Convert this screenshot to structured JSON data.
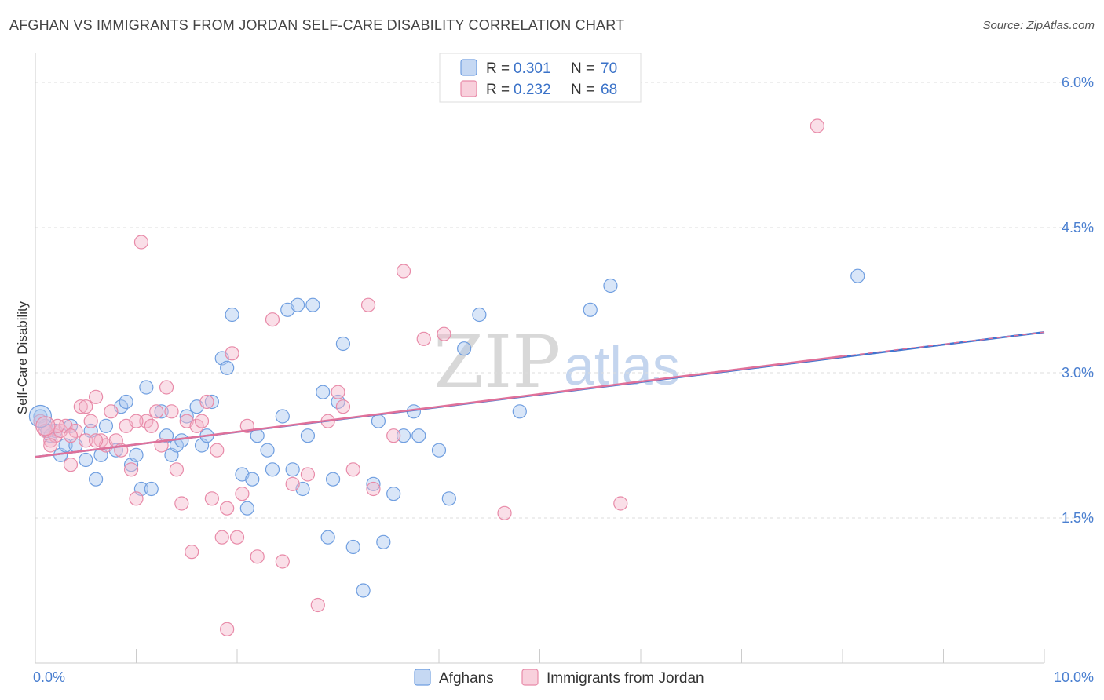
{
  "title": "AFGHAN VS IMMIGRANTS FROM JORDAN SELF-CARE DISABILITY CORRELATION CHART",
  "source": "Source: ZipAtlas.com",
  "watermark": {
    "zip": "ZIP",
    "atlas": "atlas"
  },
  "chart_data": {
    "type": "scatter",
    "ylabel": "Self-Care Disability",
    "xlabel": "",
    "xlim": [
      0,
      10
    ],
    "ylim": [
      0,
      6.3
    ],
    "x_tick_labels": [
      "0.0%",
      "10.0%"
    ],
    "y_ticks": [
      1.5,
      3.0,
      4.5,
      6.0
    ],
    "y_tick_labels": [
      "1.5%",
      "3.0%",
      "4.5%",
      "6.0%"
    ],
    "legend": [
      {
        "name": "Afghans",
        "r_label": "R =",
        "r": "0.301",
        "n_label": "N =",
        "n": "70",
        "color": "#6f9ee0",
        "fill": "#c5d8f3"
      },
      {
        "name": "Immigrants from Jordan",
        "r_label": "R =",
        "r": "0.232",
        "n_label": "N =",
        "n": "68",
        "color": "#e88aa8",
        "fill": "#f8d0dc"
      }
    ],
    "series": [
      {
        "name": "Afghans",
        "color": "#6f9ee0",
        "trend": {
          "x0": 0.0,
          "y0": 2.13,
          "x1": 10.0,
          "y1": 3.42
        },
        "points": [
          [
            0.05,
            2.55
          ],
          [
            0.1,
            2.45
          ],
          [
            0.15,
            2.35
          ],
          [
            0.2,
            2.4
          ],
          [
            0.25,
            2.15
          ],
          [
            0.3,
            2.25
          ],
          [
            0.35,
            2.45
          ],
          [
            0.4,
            2.25
          ],
          [
            0.5,
            2.1
          ],
          [
            0.55,
            2.4
          ],
          [
            0.6,
            1.9
          ],
          [
            0.65,
            2.15
          ],
          [
            0.7,
            2.45
          ],
          [
            0.8,
            2.2
          ],
          [
            0.85,
            2.65
          ],
          [
            0.9,
            2.7
          ],
          [
            0.95,
            2.05
          ],
          [
            1.0,
            2.15
          ],
          [
            1.05,
            1.8
          ],
          [
            1.1,
            2.85
          ],
          [
            1.15,
            1.8
          ],
          [
            1.25,
            2.6
          ],
          [
            1.3,
            2.35
          ],
          [
            1.35,
            2.15
          ],
          [
            1.4,
            2.25
          ],
          [
            1.45,
            2.3
          ],
          [
            1.5,
            2.55
          ],
          [
            1.6,
            2.65
          ],
          [
            1.65,
            2.25
          ],
          [
            1.7,
            2.35
          ],
          [
            1.75,
            2.7
          ],
          [
            1.85,
            3.15
          ],
          [
            1.9,
            3.05
          ],
          [
            1.95,
            3.6
          ],
          [
            2.05,
            1.95
          ],
          [
            2.1,
            1.6
          ],
          [
            2.15,
            1.9
          ],
          [
            2.2,
            2.35
          ],
          [
            2.3,
            2.2
          ],
          [
            2.35,
            2.0
          ],
          [
            2.45,
            2.55
          ],
          [
            2.5,
            3.65
          ],
          [
            2.55,
            2.0
          ],
          [
            2.6,
            3.7
          ],
          [
            2.65,
            1.8
          ],
          [
            2.7,
            2.35
          ],
          [
            2.75,
            3.7
          ],
          [
            2.85,
            2.8
          ],
          [
            2.9,
            1.3
          ],
          [
            2.95,
            1.9
          ],
          [
            3.0,
            2.7
          ],
          [
            3.05,
            3.3
          ],
          [
            3.15,
            1.2
          ],
          [
            3.25,
            0.75
          ],
          [
            3.35,
            1.85
          ],
          [
            3.4,
            2.5
          ],
          [
            3.45,
            1.25
          ],
          [
            3.55,
            1.75
          ],
          [
            3.65,
            2.35
          ],
          [
            3.75,
            2.6
          ],
          [
            3.8,
            2.35
          ],
          [
            4.0,
            2.2
          ],
          [
            4.1,
            1.7
          ],
          [
            4.25,
            3.25
          ],
          [
            4.4,
            3.6
          ],
          [
            4.8,
            2.6
          ],
          [
            5.5,
            3.65
          ],
          [
            5.7,
            3.9
          ],
          [
            8.15,
            4.0
          ],
          [
            0.12,
            2.4
          ]
        ]
      },
      {
        "name": "Immigrants from Jordan",
        "color": "#e88aa8",
        "trend": {
          "x0": 0.0,
          "y0": 2.13,
          "x1": 8.0,
          "y1": 3.17
        },
        "points": [
          [
            0.05,
            2.5
          ],
          [
            0.1,
            2.4
          ],
          [
            0.15,
            2.3
          ],
          [
            0.2,
            2.35
          ],
          [
            0.25,
            2.4
          ],
          [
            0.3,
            2.45
          ],
          [
            0.35,
            2.05
          ],
          [
            0.4,
            2.4
          ],
          [
            0.45,
            2.65
          ],
          [
            0.5,
            2.65
          ],
          [
            0.55,
            2.5
          ],
          [
            0.6,
            2.75
          ],
          [
            0.65,
            2.3
          ],
          [
            0.7,
            2.25
          ],
          [
            0.75,
            2.6
          ],
          [
            0.8,
            2.3
          ],
          [
            0.85,
            2.2
          ],
          [
            0.9,
            2.45
          ],
          [
            0.95,
            2.0
          ],
          [
            1.0,
            1.7
          ],
          [
            1.05,
            4.35
          ],
          [
            1.1,
            2.5
          ],
          [
            1.15,
            2.45
          ],
          [
            1.2,
            2.6
          ],
          [
            1.25,
            2.25
          ],
          [
            1.3,
            2.85
          ],
          [
            1.35,
            2.6
          ],
          [
            1.4,
            2.0
          ],
          [
            1.45,
            1.65
          ],
          [
            1.5,
            2.5
          ],
          [
            1.55,
            1.15
          ],
          [
            1.6,
            2.45
          ],
          [
            1.65,
            2.5
          ],
          [
            1.7,
            2.7
          ],
          [
            1.75,
            1.7
          ],
          [
            1.8,
            2.2
          ],
          [
            1.85,
            1.3
          ],
          [
            1.9,
            1.6
          ],
          [
            1.95,
            3.2
          ],
          [
            2.0,
            1.3
          ],
          [
            2.05,
            1.75
          ],
          [
            2.1,
            2.45
          ],
          [
            2.2,
            1.1
          ],
          [
            2.35,
            3.55
          ],
          [
            2.45,
            1.05
          ],
          [
            2.55,
            1.85
          ],
          [
            2.7,
            1.95
          ],
          [
            2.8,
            0.6
          ],
          [
            2.9,
            2.5
          ],
          [
            3.0,
            2.8
          ],
          [
            3.05,
            2.65
          ],
          [
            3.15,
            2.0
          ],
          [
            3.3,
            3.7
          ],
          [
            3.35,
            1.8
          ],
          [
            3.55,
            2.35
          ],
          [
            3.65,
            4.05
          ],
          [
            3.85,
            3.35
          ],
          [
            4.05,
            3.4
          ],
          [
            4.65,
            1.55
          ],
          [
            5.8,
            1.65
          ],
          [
            7.75,
            5.55
          ],
          [
            0.15,
            2.25
          ],
          [
            0.22,
            2.45
          ],
          [
            1.9,
            0.35
          ],
          [
            0.5,
            2.3
          ],
          [
            0.35,
            2.35
          ],
          [
            1.0,
            2.5
          ],
          [
            0.6,
            2.3
          ]
        ]
      }
    ]
  }
}
